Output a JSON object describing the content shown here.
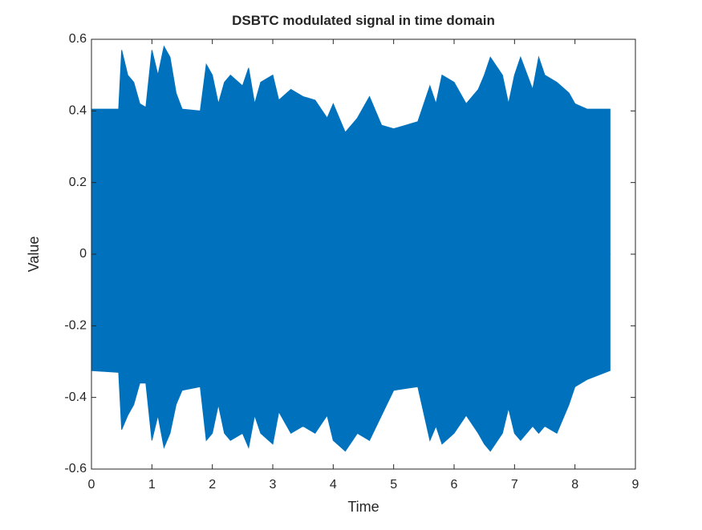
{
  "chart_data": {
    "type": "area",
    "title": "DSBTC modulated signal in time domain",
    "x_label": "Time",
    "y_label": "Value",
    "x": [
      0,
      0.45,
      0.5,
      0.6,
      0.7,
      0.8,
      0.9,
      1.0,
      1.1,
      1.2,
      1.3,
      1.4,
      1.5,
      1.8,
      1.9,
      2.0,
      2.1,
      2.2,
      2.3,
      2.5,
      2.6,
      2.7,
      2.8,
      3.0,
      3.1,
      3.3,
      3.5,
      3.7,
      3.9,
      4.0,
      4.2,
      4.4,
      4.6,
      4.8,
      5.0,
      5.4,
      5.6,
      5.7,
      5.8,
      6.0,
      6.2,
      6.4,
      6.5,
      6.6,
      6.8,
      6.9,
      7.0,
      7.1,
      7.3,
      7.4,
      7.5,
      7.7,
      7.9,
      8.0,
      8.2,
      8.58
    ],
    "series": [
      {
        "color": "#0072bd",
        "values": [
          0.405,
          0.405,
          0.57,
          0.5,
          0.48,
          0.42,
          0.41,
          0.57,
          0.5,
          0.58,
          0.55,
          0.45,
          0.405,
          0.4,
          0.53,
          0.5,
          0.42,
          0.48,
          0.5,
          0.47,
          0.52,
          0.42,
          0.48,
          0.5,
          0.43,
          0.46,
          0.44,
          0.43,
          0.38,
          0.42,
          0.34,
          0.38,
          0.44,
          0.36,
          0.35,
          0.37,
          0.47,
          0.42,
          0.5,
          0.48,
          0.42,
          0.46,
          0.5,
          0.55,
          0.5,
          0.42,
          0.5,
          0.55,
          0.46,
          0.55,
          0.5,
          0.48,
          0.45,
          0.42,
          0.405,
          0.405
        ]
      },
      {
        "color": "#0072bd",
        "values": [
          -0.325,
          -0.33,
          -0.49,
          -0.45,
          -0.42,
          -0.36,
          -0.36,
          -0.52,
          -0.45,
          -0.54,
          -0.5,
          -0.42,
          -0.38,
          -0.37,
          -0.52,
          -0.5,
          -0.42,
          -0.5,
          -0.52,
          -0.5,
          -0.54,
          -0.45,
          -0.5,
          -0.53,
          -0.44,
          -0.5,
          -0.48,
          -0.5,
          -0.45,
          -0.52,
          -0.55,
          -0.5,
          -0.52,
          -0.45,
          -0.38,
          -0.37,
          -0.52,
          -0.48,
          -0.53,
          -0.5,
          -0.45,
          -0.5,
          -0.53,
          -0.55,
          -0.5,
          -0.43,
          -0.5,
          -0.52,
          -0.48,
          -0.5,
          -0.48,
          -0.5,
          -0.42,
          -0.37,
          -0.35,
          -0.325
        ]
      }
    ],
    "xlim": [
      0,
      9
    ],
    "xticks": [
      0,
      1,
      2,
      3,
      4,
      5,
      6,
      7,
      8,
      9
    ],
    "ylim": [
      -0.6,
      0.6
    ],
    "yticks": [
      -0.6,
      -0.4,
      -0.2,
      0,
      0.2,
      0.4,
      0.6
    ],
    "grid": false
  }
}
